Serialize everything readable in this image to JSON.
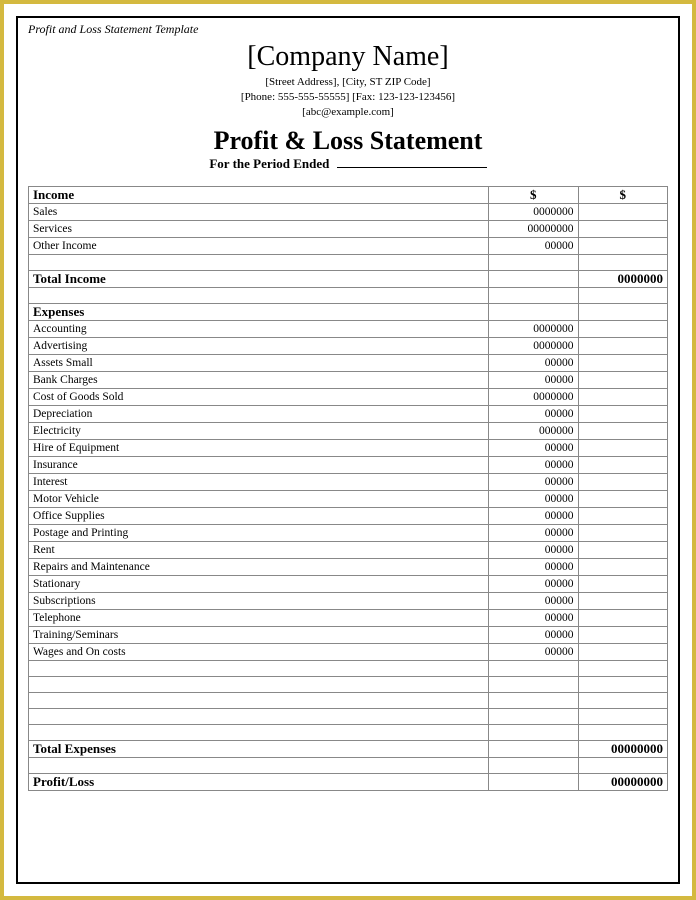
{
  "colors": {
    "frame": "#d4b93f",
    "border_strong": "#000000",
    "border_light": "#888888",
    "background": "#ffffff",
    "text": "#000000"
  },
  "typography": {
    "body_family": "Times New Roman",
    "company_fontsize": 28,
    "title_fontsize": 26,
    "meta_fontsize": 11,
    "row_fontsize": 11.5,
    "section_fontsize": 13
  },
  "template_label": "Profit and Loss Statement Template",
  "company_name": "[Company Name]",
  "meta": {
    "address": "[Street Address], [City, ST ZIP Code]",
    "phone_fax": "[Phone: 555-555-55555] [Fax: 123-123-123456]",
    "email": "[abc@example.com]"
  },
  "statement_title": "Profit & Loss Statement",
  "period_label": "For the Period Ended",
  "currency_symbol": "$",
  "income": {
    "header": "Income",
    "rows": [
      {
        "label": "Sales",
        "amt1": "0000000"
      },
      {
        "label": "Services",
        "amt1": "00000000"
      },
      {
        "label": "Other Income",
        "amt1": "00000"
      }
    ],
    "total_label": "Total Income",
    "total_value": "0000000"
  },
  "expenses": {
    "header": "Expenses",
    "rows": [
      {
        "label": "Accounting",
        "amt1": "0000000"
      },
      {
        "label": "Advertising",
        "amt1": "0000000"
      },
      {
        "label": "Assets Small",
        "amt1": "00000"
      },
      {
        "label": "Bank Charges",
        "amt1": "00000"
      },
      {
        "label": "Cost of Goods Sold",
        "amt1": "0000000"
      },
      {
        "label": "Depreciation",
        "amt1": "00000"
      },
      {
        "label": "Electricity",
        "amt1": "000000"
      },
      {
        "label": "Hire of Equipment",
        "amt1": "00000"
      },
      {
        "label": "Insurance",
        "amt1": "00000"
      },
      {
        "label": "Interest",
        "amt1": "00000"
      },
      {
        "label": "Motor Vehicle",
        "amt1": "00000"
      },
      {
        "label": "Office Supplies",
        "amt1": "00000"
      },
      {
        "label": "Postage and Printing",
        "amt1": "00000"
      },
      {
        "label": "Rent",
        "amt1": "00000"
      },
      {
        "label": "Repairs and Maintenance",
        "amt1": "00000"
      },
      {
        "label": "Stationary",
        "amt1": "00000"
      },
      {
        "label": "Subscriptions",
        "amt1": "00000"
      },
      {
        "label": "Telephone",
        "amt1": "00000"
      },
      {
        "label": "Training/Seminars",
        "amt1": "00000"
      },
      {
        "label": "Wages and On costs",
        "amt1": "00000"
      }
    ],
    "blank_rows": 5,
    "total_label": "Total Expenses",
    "total_value": "00000000"
  },
  "profit_loss": {
    "label": "Profit/Loss",
    "value": "00000000"
  }
}
